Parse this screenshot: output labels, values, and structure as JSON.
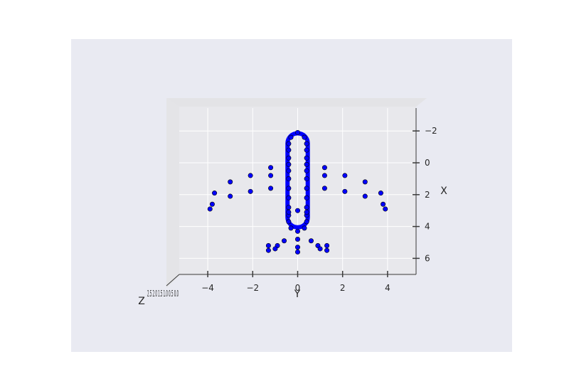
{
  "chart_data": {
    "type": "scatter",
    "projection": "3d",
    "xlabel": "Y",
    "ylabel": "X",
    "zlabel": "Z",
    "x_ticks": [
      "−4",
      "−2",
      "0",
      "2",
      "4"
    ],
    "y_ticks": [
      "−2",
      "0",
      "2",
      "4",
      "6"
    ],
    "x_tick_values": [
      -4,
      -2,
      0,
      2,
      4
    ],
    "y_tick_values": [
      -2,
      0,
      2,
      4,
      6
    ],
    "z_tick_labels_overlapping": "2.5 2.0 1.5 1.0 0.5 0.0",
    "xlim": [
      -5.2,
      5.2
    ],
    "ylim": [
      -3.2,
      7.2
    ],
    "grid": true,
    "series": [
      {
        "color": "#0000ff",
        "edgecolor": "#000000",
        "points": [
          [
            0,
            -1.9
          ],
          [
            -0.3,
            -1.6
          ],
          [
            0.3,
            -1.6
          ],
          [
            -0.4,
            -1.2
          ],
          [
            0.4,
            -1.2
          ],
          [
            -0.4,
            -0.8
          ],
          [
            0.4,
            -0.8
          ],
          [
            -0.4,
            -0.3
          ],
          [
            0.4,
            -0.3
          ],
          [
            -0.4,
            0.1
          ],
          [
            0.4,
            0.1
          ],
          [
            -0.4,
            0.5
          ],
          [
            0.4,
            0.5
          ],
          [
            -0.4,
            1.0
          ],
          [
            0.4,
            1.0
          ],
          [
            -0.4,
            1.6
          ],
          [
            0.4,
            1.6
          ],
          [
            -0.4,
            2.2
          ],
          [
            0.4,
            2.2
          ],
          [
            -0.4,
            2.8
          ],
          [
            0.4,
            2.8
          ],
          [
            -0.4,
            3.3
          ],
          [
            0.4,
            3.3
          ],
          [
            -0.4,
            3.7
          ],
          [
            0.4,
            3.7
          ],
          [
            -0.3,
            4.1
          ],
          [
            0.3,
            4.1
          ],
          [
            0,
            4.3
          ],
          [
            0,
            4.8
          ],
          [
            0,
            5.3
          ],
          [
            0,
            5.6
          ],
          [
            -0.6,
            4.9
          ],
          [
            0.6,
            4.9
          ],
          [
            -0.9,
            5.2
          ],
          [
            0.9,
            5.2
          ],
          [
            -1.3,
            5.2
          ],
          [
            1.3,
            5.2
          ],
          [
            -1.3,
            5.5
          ],
          [
            1.3,
            5.5
          ],
          [
            -1.0,
            5.4
          ],
          [
            1.0,
            5.4
          ],
          [
            -1.2,
            0.3
          ],
          [
            1.2,
            0.3
          ],
          [
            -1.2,
            0.8
          ],
          [
            1.2,
            0.8
          ],
          [
            -1.2,
            1.6
          ],
          [
            1.2,
            1.6
          ],
          [
            -2.1,
            0.8
          ],
          [
            2.1,
            0.8
          ],
          [
            -2.1,
            1.8
          ],
          [
            2.1,
            1.8
          ],
          [
            -3.0,
            1.2
          ],
          [
            3.0,
            1.2
          ],
          [
            -3.0,
            2.1
          ],
          [
            3.0,
            2.1
          ],
          [
            -3.7,
            1.9
          ],
          [
            3.7,
            1.9
          ],
          [
            -3.8,
            2.6
          ],
          [
            3.8,
            2.6
          ],
          [
            -3.9,
            2.9
          ],
          [
            3.9,
            2.9
          ],
          [
            -0.4,
            3.1
          ],
          [
            0.4,
            3.1
          ],
          [
            0,
            3.0
          ]
        ]
      }
    ]
  }
}
